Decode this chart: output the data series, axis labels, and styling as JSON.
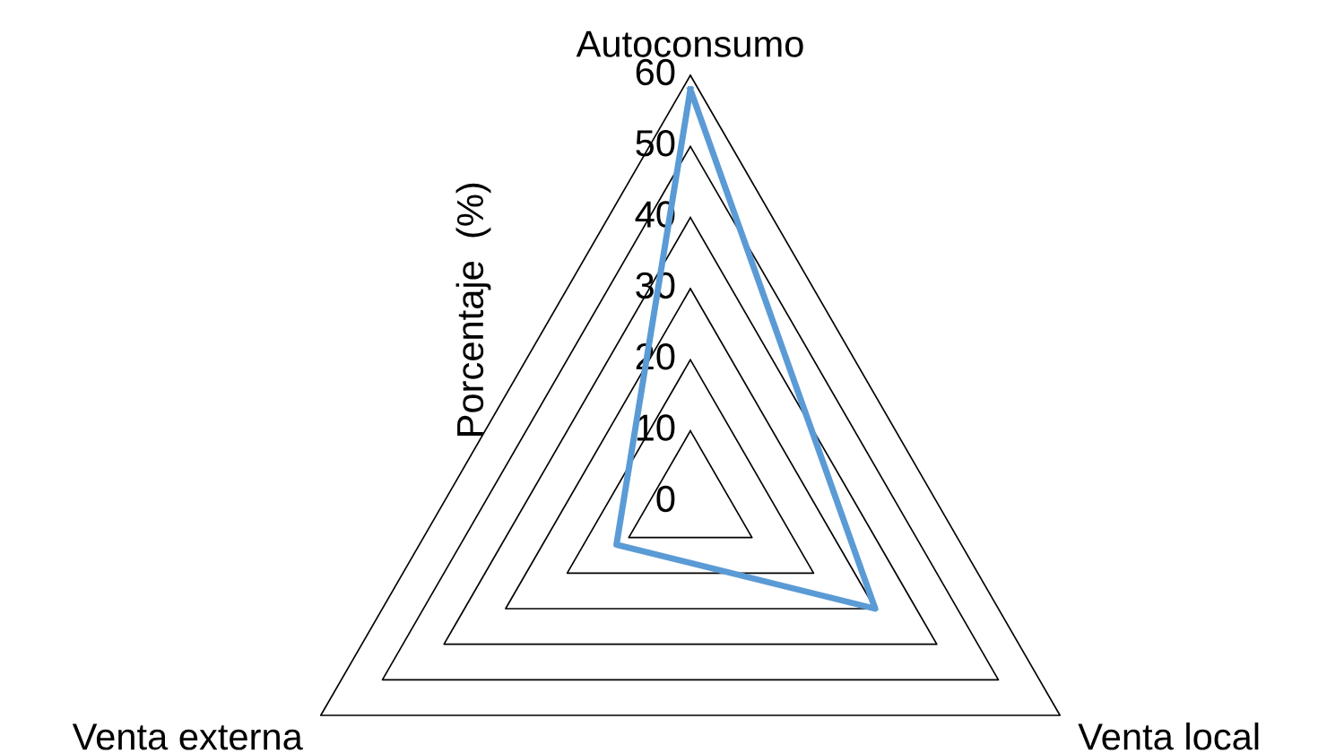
{
  "chart_data": {
    "type": "radar",
    "ylabel": "Porcentaje  (%)",
    "categories": [
      "Autoconsumo",
      "Venta local",
      "Venta externa"
    ],
    "series": [
      {
        "color": "#5b9bd5",
        "values": [
          58,
          30,
          12
        ]
      }
    ],
    "ylim": [
      0,
      60
    ],
    "yticks": [
      0,
      10,
      20,
      30,
      40,
      50,
      60
    ],
    "grid": true
  }
}
